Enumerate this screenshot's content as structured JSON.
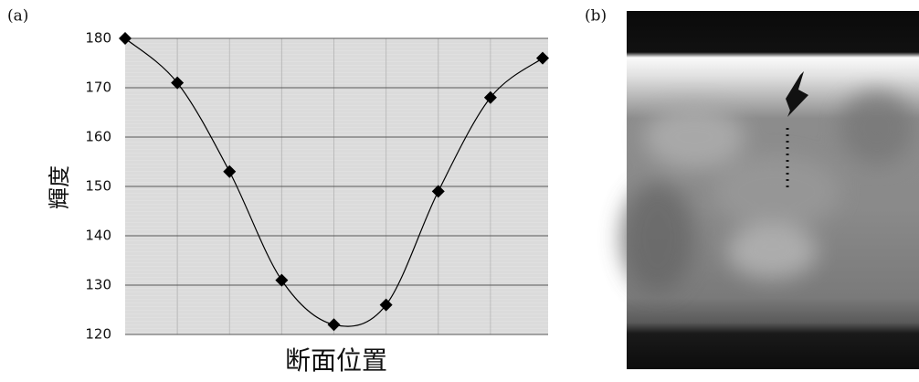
{
  "chart_data": {
    "type": "line",
    "panel_label": "(a)",
    "y_label": "輝度",
    "x_label": "断面位置",
    "categories": [
      null,
      null,
      null,
      null,
      null,
      null,
      null,
      null,
      null
    ],
    "values": [
      180,
      171,
      153,
      131,
      122,
      126,
      149,
      168,
      176
    ],
    "color": "#000000",
    "marker": "diamond",
    "smooth": true,
    "ylim": [
      120,
      180
    ],
    "yticks": [
      120,
      130,
      140,
      150,
      160,
      170,
      180
    ],
    "grid": true
  },
  "image_panel": {
    "label": "(b)"
  }
}
